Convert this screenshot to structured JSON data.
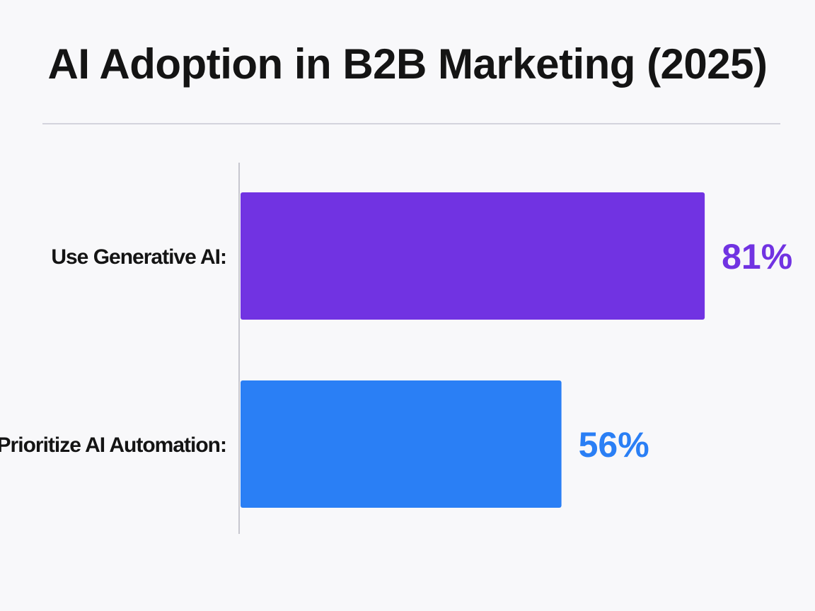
{
  "chart_data": {
    "type": "bar",
    "orientation": "horizontal",
    "title": "AI Adoption in B2B Marketing (2025)",
    "categories": [
      "Use Generative AI:",
      "Prioritize AI Automation:"
    ],
    "values": [
      81,
      56
    ],
    "value_labels": [
      "81%",
      "56%"
    ],
    "colors": [
      "#7133e2",
      "#2a7ff5"
    ],
    "xlim": [
      0,
      100
    ],
    "xlabel": "",
    "ylabel": "",
    "grid": false,
    "legend": "none"
  }
}
